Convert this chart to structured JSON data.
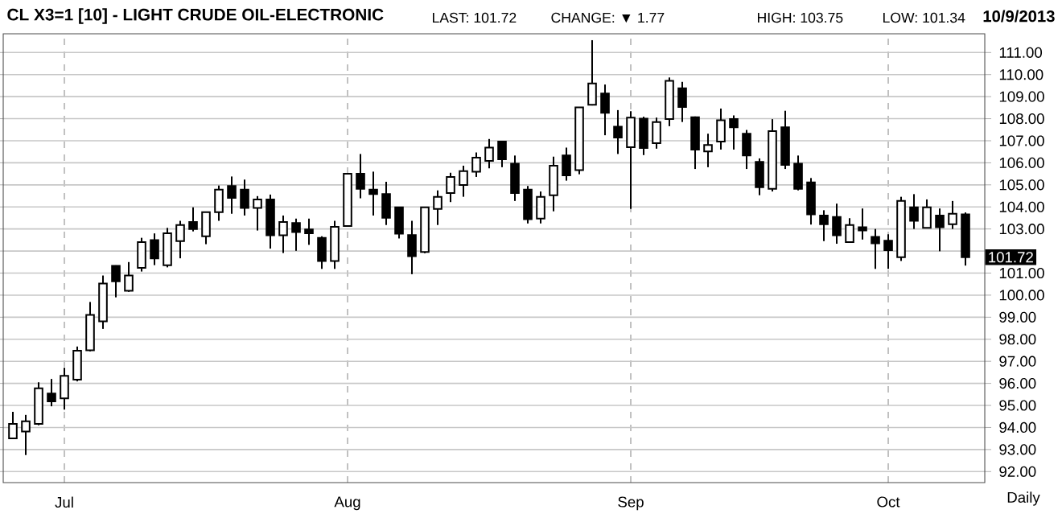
{
  "chart_data": {
    "type": "candlestick",
    "title": "CL X3=1 [10] - LIGHT CRUDE OIL-ELECTRONIC",
    "annotations": [
      "LAST: 101.72",
      "CHANGE: ▼ 1.77",
      "HIGH: 103.75",
      "LOW: 101.34",
      "10/9/2013",
      "Daily",
      {
        "text": "101.72",
        "y": 101.72
      }
    ],
    "categories": [
      null,
      null,
      null,
      null,
      "Jul",
      null,
      null,
      null,
      null,
      null,
      null,
      null,
      null,
      null,
      null,
      null,
      null,
      null,
      null,
      null,
      null,
      null,
      null,
      null,
      null,
      null,
      "Aug",
      null,
      null,
      null,
      null,
      null,
      null,
      null,
      null,
      null,
      null,
      null,
      null,
      null,
      null,
      null,
      null,
      null,
      null,
      null,
      null,
      null,
      "Sep",
      null,
      null,
      null,
      null,
      null,
      null,
      null,
      null,
      null,
      null,
      null,
      null,
      null,
      null,
      null,
      null,
      null,
      null,
      null,
      "Oct",
      null,
      null,
      null,
      null,
      null,
      null
    ],
    "ohlc": [
      [
        93.51,
        94.71,
        93.5,
        94.16
      ],
      [
        93.82,
        94.57,
        92.75,
        94.28
      ],
      [
        94.16,
        96.05,
        94.1,
        95.78
      ],
      [
        95.54,
        96.2,
        94.96,
        95.18
      ],
      [
        95.32,
        96.71,
        94.81,
        96.34
      ],
      [
        96.17,
        97.67,
        96.09,
        97.48
      ],
      [
        97.5,
        99.69,
        97.45,
        99.1
      ],
      [
        98.81,
        100.89,
        98.47,
        100.53
      ],
      [
        101.33,
        101.35,
        99.9,
        100.63
      ],
      [
        100.2,
        101.5,
        100.15,
        100.89
      ],
      [
        101.24,
        102.6,
        101.07,
        102.4
      ],
      [
        102.5,
        102.8,
        101.36,
        101.67
      ],
      [
        101.36,
        103.05,
        101.26,
        102.81
      ],
      [
        102.45,
        103.37,
        101.67,
        103.18
      ],
      [
        103.32,
        103.98,
        102.89,
        103.0
      ],
      [
        102.67,
        103.78,
        102.31,
        103.76
      ],
      [
        103.76,
        104.97,
        103.37,
        104.78
      ],
      [
        104.95,
        105.38,
        103.69,
        104.41
      ],
      [
        104.78,
        105.24,
        103.61,
        103.95
      ],
      [
        103.95,
        104.49,
        102.93,
        104.34
      ],
      [
        104.34,
        104.56,
        102.11,
        102.71
      ],
      [
        102.71,
        103.61,
        101.91,
        103.32
      ],
      [
        103.27,
        103.47,
        102.01,
        102.86
      ],
      [
        102.98,
        103.47,
        102.28,
        102.81
      ],
      [
        102.6,
        102.67,
        101.19,
        101.55
      ],
      [
        101.55,
        103.37,
        101.19,
        103.1
      ],
      [
        103.13,
        105.52,
        103.1,
        105.5
      ],
      [
        105.5,
        106.4,
        104.39,
        104.82
      ],
      [
        104.78,
        105.6,
        103.61,
        104.58
      ],
      [
        104.58,
        105.14,
        103.18,
        103.51
      ],
      [
        103.98,
        104.0,
        102.57,
        102.79
      ],
      [
        102.72,
        103.37,
        100.95,
        101.77
      ],
      [
        101.96,
        104.0,
        101.9,
        103.98
      ],
      [
        103.91,
        104.75,
        103.18,
        104.46
      ],
      [
        104.63,
        105.55,
        104.22,
        105.36
      ],
      [
        104.99,
        105.87,
        104.46,
        105.62
      ],
      [
        105.6,
        106.47,
        105.36,
        106.23
      ],
      [
        106.09,
        107.08,
        105.75,
        106.69
      ],
      [
        106.96,
        106.98,
        105.8,
        106.16
      ],
      [
        105.96,
        106.33,
        104.27,
        104.63
      ],
      [
        104.78,
        104.95,
        103.25,
        103.44
      ],
      [
        103.47,
        104.7,
        103.25,
        104.46
      ],
      [
        104.53,
        106.28,
        103.8,
        105.87
      ],
      [
        106.33,
        106.69,
        105.19,
        105.43
      ],
      [
        105.67,
        108.53,
        105.48,
        108.51
      ],
      [
        108.63,
        111.56,
        108.6,
        109.6
      ],
      [
        109.14,
        109.55,
        107.25,
        108.27
      ],
      [
        107.64,
        108.39,
        106.4,
        107.15
      ],
      [
        106.71,
        108.34,
        103.91,
        108.05
      ],
      [
        108.0,
        108.09,
        106.35,
        106.67
      ],
      [
        106.89,
        108.05,
        106.64,
        107.85
      ],
      [
        107.98,
        109.87,
        107.66,
        109.72
      ],
      [
        109.38,
        109.67,
        107.85,
        108.53
      ],
      [
        108.07,
        108.1,
        105.72,
        106.6
      ],
      [
        106.52,
        107.32,
        105.8,
        106.81
      ],
      [
        106.96,
        108.46,
        106.6,
        107.93
      ],
      [
        107.98,
        108.15,
        106.6,
        107.61
      ],
      [
        107.32,
        107.49,
        105.72,
        106.33
      ],
      [
        106.04,
        106.2,
        104.53,
        104.89
      ],
      [
        104.82,
        107.98,
        104.7,
        107.44
      ],
      [
        107.61,
        108.36,
        105.72,
        105.91
      ],
      [
        105.96,
        106.33,
        104.75,
        104.82
      ],
      [
        105.11,
        105.31,
        103.2,
        103.66
      ],
      [
        103.61,
        103.85,
        102.45,
        103.22
      ],
      [
        103.54,
        104.15,
        102.33,
        102.71
      ],
      [
        102.4,
        103.49,
        102.38,
        103.18
      ],
      [
        103.08,
        103.93,
        102.52,
        102.93
      ],
      [
        102.64,
        103.0,
        101.19,
        102.35
      ],
      [
        102.47,
        102.76,
        101.19,
        102.04
      ],
      [
        101.72,
        104.46,
        101.55,
        104.27
      ],
      [
        103.98,
        104.58,
        103.0,
        103.37
      ],
      [
        103.05,
        104.34,
        103.03,
        103.98
      ],
      [
        103.61,
        103.93,
        101.99,
        103.08
      ],
      [
        103.22,
        104.27,
        103.0,
        103.69
      ],
      [
        103.66,
        103.75,
        101.34,
        101.72
      ]
    ],
    "ylim": [
      91.5,
      111.85
    ],
    "yticks": [
      {
        "value": 92,
        "label": "92.00"
      },
      {
        "value": 93,
        "label": "93.00"
      },
      {
        "value": 94,
        "label": "94.00"
      },
      {
        "value": 95,
        "label": "95.00"
      },
      {
        "value": 96,
        "label": "96.00"
      },
      {
        "value": 97,
        "label": "97.00"
      },
      {
        "value": 98,
        "label": "98.00"
      },
      {
        "value": 99,
        "label": "99.00"
      },
      {
        "value": 100,
        "label": "100.00"
      },
      {
        "value": 101,
        "label": "101.00"
      },
      {
        "value": 102,
        "label": null
      },
      {
        "value": 103,
        "label": "103.00"
      },
      {
        "value": 104,
        "label": "104.00"
      },
      {
        "value": 105,
        "label": "105.00"
      },
      {
        "value": 106,
        "label": "106.00"
      },
      {
        "value": 107,
        "label": "107.00"
      },
      {
        "value": 108,
        "label": "108.00"
      },
      {
        "value": 109,
        "label": "109.00"
      },
      {
        "value": 110,
        "label": "110.00"
      },
      {
        "value": 111,
        "label": "111.00"
      }
    ],
    "grid": true
  }
}
